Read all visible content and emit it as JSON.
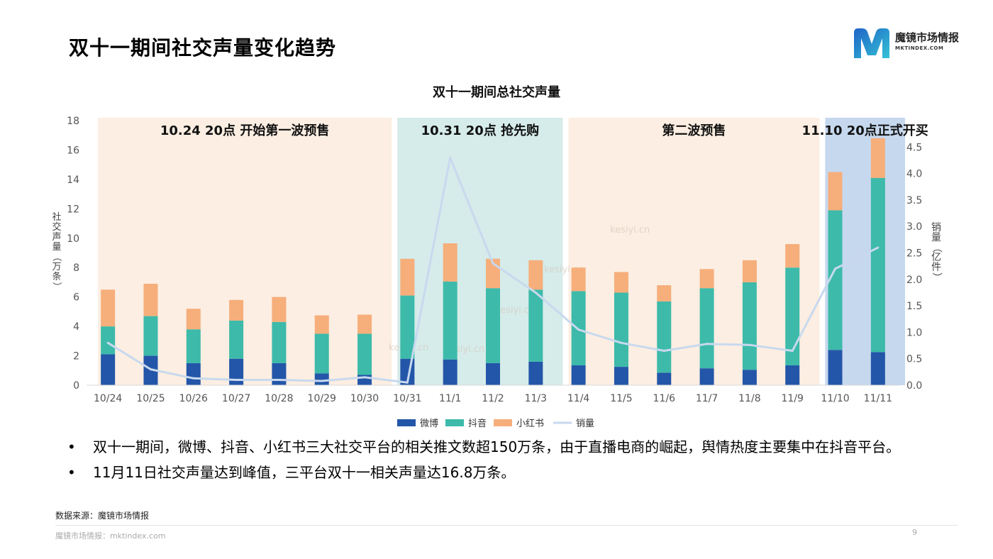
{
  "page": {
    "title": "双十一期间社交声量变化趋势",
    "logo_name": "魔镜市场情报",
    "logo_sub": "MKTINDEX.COM",
    "bullets": [
      "双十一期间，微博、抖音、小红书三大社交平台的相关推文数超150万条，由于直播电商的崛起，舆情热度主要集中在抖音平台。",
      "11月11日社交声量达到峰值，三平台双十一相关声量达16.8万条。"
    ],
    "bullet_symbol": "•",
    "source": "数据来源：魔镜市场情报",
    "footer": "魔镜市场情报：mktindex.com",
    "page_number": "9"
  },
  "chart_data": {
    "type": "bar",
    "stacked": true,
    "title": "双十一期间总社交声量",
    "ylabel": "社交声量（万条）",
    "y2label": "销量（亿件）",
    "ylim": [
      0,
      18
    ],
    "y2lim": [
      0,
      5
    ],
    "yticks": [
      "0",
      "2",
      "4",
      "6",
      "8",
      "10",
      "12",
      "14",
      "16",
      "18"
    ],
    "y2ticks": [
      "0.0",
      "0.5",
      "1.0",
      "1.5",
      "2.0",
      "2.5",
      "3.0",
      "3.5",
      "4.0",
      "4.5"
    ],
    "grid": false,
    "legend_position": "bottom",
    "categories": [
      "10/24",
      "10/25",
      "10/26",
      "10/27",
      "10/28",
      "10/29",
      "10/30",
      "10/31",
      "11/1",
      "11/2",
      "11/3",
      "11/4",
      "11/5",
      "11/6",
      "11/7",
      "11/8",
      "11/9",
      "11/10",
      "11/11"
    ],
    "series": [
      {
        "name": "微博",
        "type": "bar",
        "axis": "left",
        "color": "#2356A8",
        "values": [
          2.1,
          2.0,
          1.5,
          1.8,
          1.5,
          0.8,
          0.7,
          1.8,
          1.75,
          1.5,
          1.6,
          1.35,
          1.25,
          0.85,
          1.15,
          1.05,
          1.35,
          2.4,
          2.25
        ]
      },
      {
        "name": "抖音",
        "type": "bar",
        "axis": "left",
        "color": "#3DBAAA",
        "values": [
          1.9,
          2.7,
          2.3,
          2.6,
          2.8,
          2.7,
          2.8,
          4.3,
          5.3,
          5.1,
          4.9,
          5.05,
          5.05,
          4.85,
          5.45,
          5.95,
          6.65,
          9.5,
          11.85
        ]
      },
      {
        "name": "小红书",
        "type": "bar",
        "axis": "left",
        "color": "#F6AE7B",
        "values": [
          2.5,
          2.2,
          1.4,
          1.4,
          1.7,
          1.25,
          1.3,
          2.5,
          2.6,
          2.0,
          2.0,
          1.6,
          1.4,
          1.1,
          1.3,
          1.5,
          1.6,
          2.6,
          2.7
        ]
      },
      {
        "name": "销量",
        "type": "line",
        "axis": "right",
        "color": "#C8D9EE",
        "values": [
          0.8,
          0.3,
          0.13,
          0.1,
          0.1,
          0.08,
          0.15,
          0.05,
          4.3,
          2.3,
          1.75,
          1.05,
          0.8,
          0.65,
          0.78,
          0.76,
          0.65,
          2.2,
          2.6
        ]
      }
    ],
    "phases": [
      {
        "label": "10.24 20点 开始第一波预售",
        "start": 0,
        "end": 6,
        "color": "#FCEEE2"
      },
      {
        "label": "10.31 20点 抢先购",
        "start": 7,
        "end": 10,
        "color": "#D5ECEA"
      },
      {
        "label": "第二波预售",
        "start": 11,
        "end": 16,
        "color": "#FCEEE2"
      },
      {
        "label": "11.10 20点正式开买",
        "start": 17,
        "end": 18,
        "color": "#C6D8EE"
      }
    ],
    "watermark": "kesiyi.cn"
  }
}
